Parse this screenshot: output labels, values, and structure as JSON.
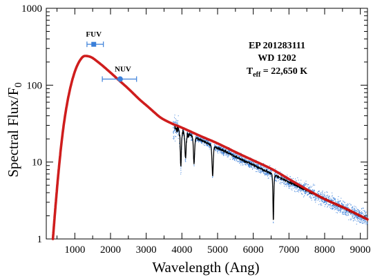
{
  "chart_data": {
    "type": "line",
    "xlabel": "Wavelength (Ang)",
    "ylabel_main": "Spectral Flux/F",
    "ylabel_sub": "0",
    "xlim": [
      200,
      9200
    ],
    "ylim": [
      1,
      1000
    ],
    "yscale": "log",
    "x_ticks": [
      1000,
      2000,
      3000,
      4000,
      5000,
      6000,
      7000,
      8000,
      9000
    ],
    "x_tick_labels": [
      "1000",
      "2000",
      "3000",
      "4000",
      "5000",
      "6000",
      "7000",
      "8000",
      "9000"
    ],
    "y_ticks": [
      1,
      10,
      100,
      1000
    ],
    "y_tick_labels": [
      "1",
      "10",
      "100",
      "1000"
    ],
    "annotations": {
      "line1": "EP 201283111",
      "line2": "WD 1202",
      "teff_main": "T",
      "teff_sub": "eff",
      "teff_value": " = 22,650 K"
    },
    "photometry": [
      {
        "name": "FUV",
        "x": 1530,
        "y": 340,
        "xerr_low": 1340,
        "xerr_high": 1800
      },
      {
        "name": "NUV",
        "x": 2270,
        "y": 120,
        "xerr_low": 1770,
        "xerr_high": 2730
      }
    ],
    "model_curve": {
      "color": "#cc1111",
      "x": [
        385,
        420,
        480,
        560,
        650,
        760,
        880,
        1000,
        1130,
        1280,
        1450,
        1650,
        1900,
        2200,
        2500,
        2800,
        3100,
        3400,
        3700,
        4000,
        4500,
        5000,
        5500,
        6000,
        6500,
        7000,
        7500,
        8000,
        8500,
        9000,
        9200
      ],
      "y": [
        1.0,
        1.6,
        3.5,
        9.0,
        22,
        50,
        95,
        150,
        205,
        240,
        232,
        200,
        160,
        120,
        90,
        66,
        50,
        38,
        32,
        28,
        22,
        17.5,
        13.5,
        10.5,
        8.2,
        6.0,
        4.4,
        3.3,
        2.6,
        2.0,
        1.8
      ]
    },
    "observed_spectrum": {
      "color": "#000000",
      "x_range": [
        3800,
        9200
      ],
      "y_at_start": 28,
      "y_at_end": 1.8
    },
    "scatter_points": {
      "color": "#3a7fd9",
      "x_range": [
        3750,
        9200
      ]
    },
    "absorption_lines": [
      {
        "x": 3970,
        "depth": 0.65
      },
      {
        "x": 4102,
        "depth": 0.55
      },
      {
        "x": 4340,
        "depth": 0.55
      },
      {
        "x": 4861,
        "depth": 0.6
      },
      {
        "x": 6563,
        "depth": 0.75
      }
    ]
  }
}
